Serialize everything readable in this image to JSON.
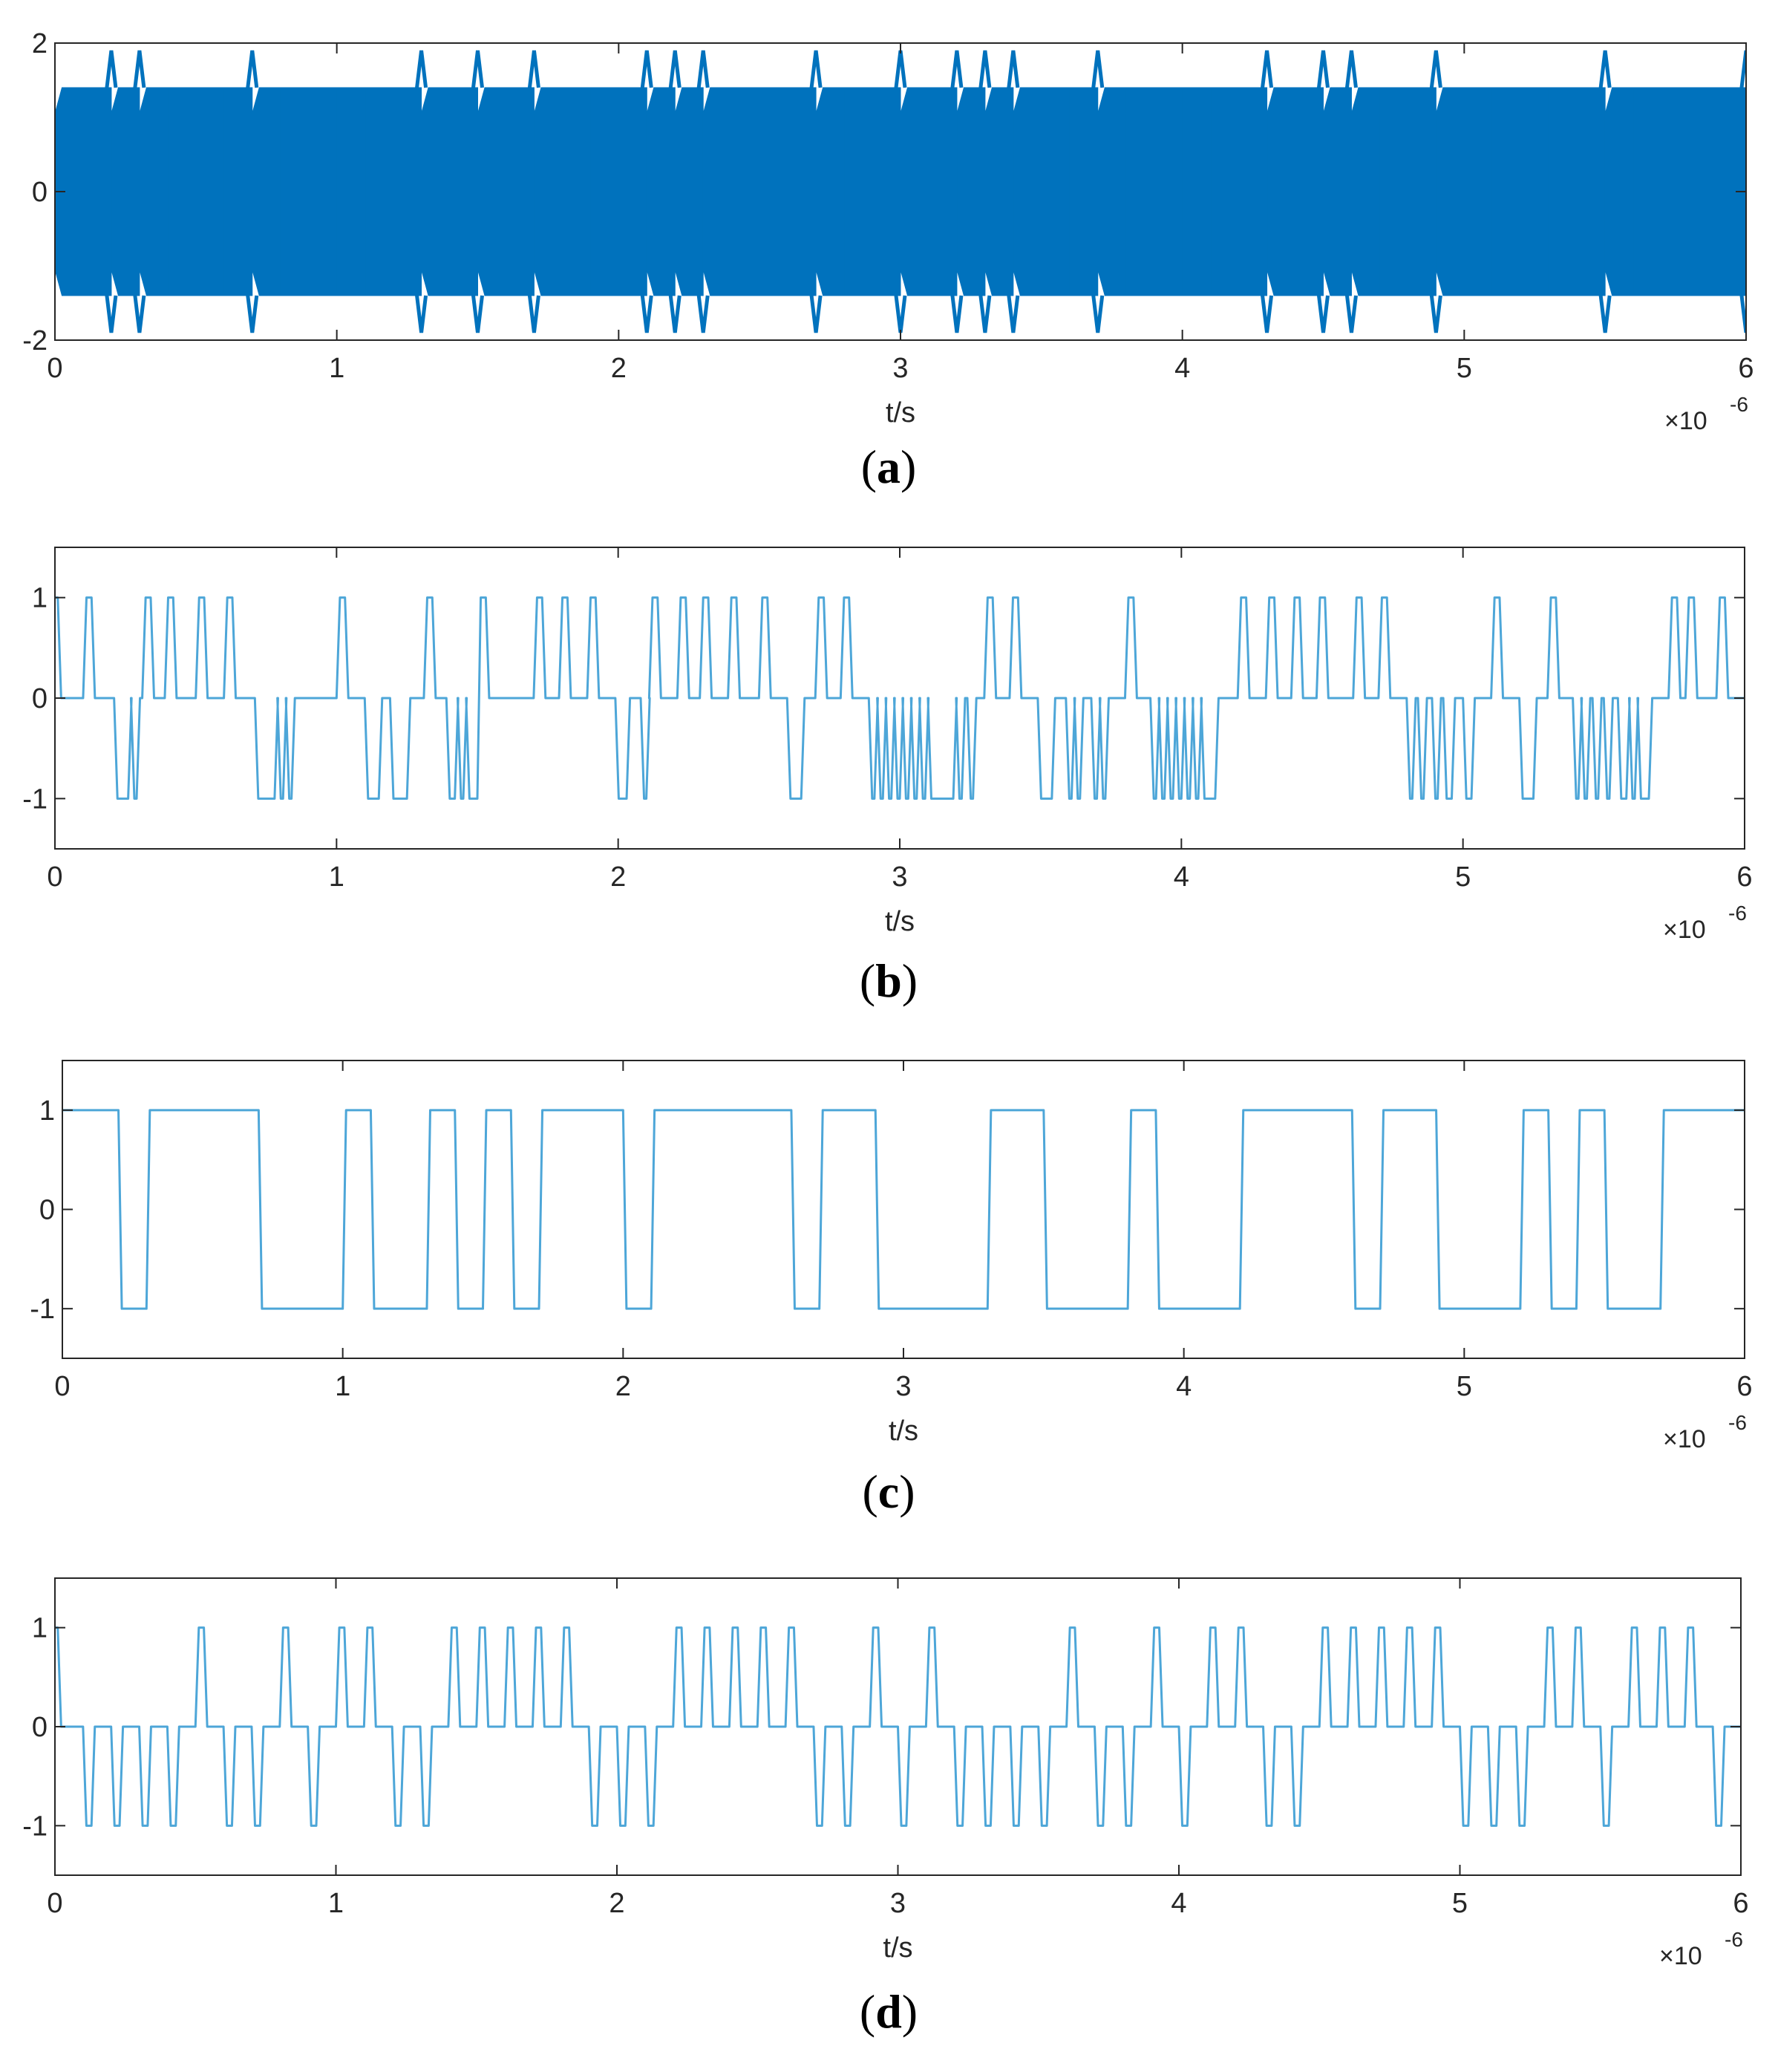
{
  "colors": {
    "trace": "#0072BD",
    "trace_light": "#4DA6D8",
    "axis": "#262626",
    "background": "#ffffff"
  },
  "chart_data": [
    {
      "panel": "a",
      "caption_letter": "a",
      "type": "line",
      "xlabel": "t/s",
      "x_multiplier": "×10",
      "x_exponent": "-6",
      "xlim": [
        0,
        6
      ],
      "ylim": [
        -2,
        2
      ],
      "xticks": [
        "0",
        "1",
        "2",
        "3",
        "4",
        "5",
        "6"
      ],
      "yticks": [
        "2",
        "0",
        "-2"
      ],
      "grid": false,
      "signal": "modulated",
      "carrier_envelope": 1.4,
      "symbol_period_us": 0.1,
      "symbol_signs": [
        1,
        1,
        -1,
        1,
        1,
        1,
        1,
        -1,
        -1,
        -1,
        -1,
        -1,
        -1,
        1,
        1,
        -1,
        -1,
        1,
        1,
        1,
        1,
        -1,
        1,
        -1,
        -1,
        -1,
        -1,
        1,
        1,
        1,
        -1,
        -1,
        1,
        -1,
        1,
        1,
        1,
        -1,
        -1,
        -1,
        -1,
        -1,
        -1,
        1,
        1,
        -1,
        1,
        1,
        1,
        -1,
        -1,
        -1,
        -1,
        -1,
        -1,
        1,
        1,
        1,
        1,
        1,
        -1,
        1,
        1,
        1,
        -1,
        -1,
        -1,
        1,
        1,
        1,
        -1,
        -1,
        -1,
        -1,
        1,
        1,
        -1,
        -1,
        -1,
        -1,
        -1,
        1,
        1,
        -1,
        -1,
        -1,
        -1,
        -1,
        1,
        1,
        -1,
        -1,
        1,
        1,
        1,
        1,
        1,
        1,
        1,
        1,
        -1,
        1,
        1,
        1,
        1,
        -1,
        -1,
        -1,
        1,
        1,
        1,
        -1,
        -1,
        1,
        1,
        1,
        -1,
        -1,
        -1,
        -1,
        1,
        1,
        1,
        1,
        1
      ]
    },
    {
      "panel": "b",
      "caption_letter": "b",
      "type": "line",
      "xlabel": "t/s",
      "x_multiplier": "×10",
      "x_exponent": "-6",
      "xlim": [
        0,
        6
      ],
      "ylim": [
        -1.5,
        1.5
      ],
      "xticks": [
        "0",
        "1",
        "2",
        "3",
        "4",
        "5",
        "6"
      ],
      "yticks": [
        "1",
        "0",
        "-1"
      ],
      "grid": false,
      "signal": "tri-state",
      "steps": [
        [
          0,
          1
        ],
        [
          0.01,
          0
        ],
        [
          0.1,
          1
        ],
        [
          0.13,
          0
        ],
        [
          0.21,
          -1
        ],
        [
          0.26,
          0
        ],
        [
          0.27,
          -1
        ],
        [
          0.29,
          0
        ],
        [
          0.31,
          1
        ],
        [
          0.34,
          0
        ],
        [
          0.39,
          1
        ],
        [
          0.42,
          0
        ],
        [
          0.5,
          1
        ],
        [
          0.53,
          0
        ],
        [
          0.6,
          1
        ],
        [
          0.63,
          0
        ],
        [
          0.71,
          -1
        ],
        [
          0.78,
          0
        ],
        [
          0.79,
          -1
        ],
        [
          0.81,
          0
        ],
        [
          0.82,
          -1
        ],
        [
          0.84,
          0
        ],
        [
          1.0,
          1
        ],
        [
          1.03,
          0
        ],
        [
          1.1,
          -1
        ],
        [
          1.15,
          0
        ],
        [
          1.19,
          -1
        ],
        [
          1.25,
          0
        ],
        [
          1.31,
          1
        ],
        [
          1.34,
          0
        ],
        [
          1.39,
          -1
        ],
        [
          1.42,
          0
        ],
        [
          1.43,
          -1
        ],
        [
          1.45,
          0
        ],
        [
          1.46,
          -1
        ],
        [
          1.5,
          1
        ],
        [
          1.53,
          0
        ],
        [
          1.7,
          1
        ],
        [
          1.73,
          0
        ],
        [
          1.79,
          1
        ],
        [
          1.82,
          0
        ],
        [
          1.89,
          1
        ],
        [
          1.92,
          0
        ],
        [
          1.99,
          -1
        ],
        [
          2.03,
          0
        ],
        [
          2.08,
          -1
        ],
        [
          2.1,
          0
        ],
        [
          2.11,
          1
        ],
        [
          2.14,
          0
        ],
        [
          2.21,
          1
        ],
        [
          2.24,
          0
        ],
        [
          2.29,
          1
        ],
        [
          2.32,
          0
        ],
        [
          2.39,
          1
        ],
        [
          2.42,
          0
        ],
        [
          2.5,
          1
        ],
        [
          2.53,
          0
        ],
        [
          2.6,
          -1
        ],
        [
          2.65,
          0
        ],
        [
          2.7,
          1
        ],
        [
          2.73,
          0
        ],
        [
          2.79,
          1
        ],
        [
          2.82,
          0
        ],
        [
          2.89,
          -1
        ],
        [
          2.91,
          0
        ],
        [
          2.92,
          -1
        ],
        [
          2.94,
          0
        ],
        [
          2.95,
          -1
        ],
        [
          2.97,
          0
        ],
        [
          2.98,
          -1
        ],
        [
          3.0,
          0
        ],
        [
          3.01,
          -1
        ],
        [
          3.03,
          0
        ],
        [
          3.04,
          -1
        ],
        [
          3.06,
          0
        ],
        [
          3.07,
          -1
        ],
        [
          3.09,
          0
        ],
        [
          3.1,
          -1
        ],
        [
          3.19,
          0
        ],
        [
          3.2,
          -1
        ],
        [
          3.22,
          0
        ],
        [
          3.24,
          -1
        ],
        [
          3.26,
          0
        ],
        [
          3.3,
          1
        ],
        [
          3.33,
          0
        ],
        [
          3.39,
          1
        ],
        [
          3.42,
          0
        ],
        [
          3.49,
          -1
        ],
        [
          3.54,
          0
        ],
        [
          3.59,
          -1
        ],
        [
          3.61,
          0
        ],
        [
          3.62,
          -1
        ],
        [
          3.64,
          0
        ],
        [
          3.68,
          -1
        ],
        [
          3.7,
          0
        ],
        [
          3.71,
          -1
        ],
        [
          3.73,
          0
        ],
        [
          3.8,
          1
        ],
        [
          3.83,
          0
        ],
        [
          3.89,
          -1
        ],
        [
          3.91,
          0
        ],
        [
          3.92,
          -1
        ],
        [
          3.94,
          0
        ],
        [
          3.95,
          -1
        ],
        [
          3.97,
          0
        ],
        [
          3.98,
          -1
        ],
        [
          4.0,
          0
        ],
        [
          4.01,
          -1
        ],
        [
          4.03,
          0
        ],
        [
          4.04,
          -1
        ],
        [
          4.06,
          0
        ],
        [
          4.07,
          -1
        ],
        [
          4.12,
          0
        ],
        [
          4.2,
          1
        ],
        [
          4.23,
          0
        ],
        [
          4.3,
          1
        ],
        [
          4.33,
          0
        ],
        [
          4.39,
          1
        ],
        [
          4.42,
          0
        ],
        [
          4.48,
          1
        ],
        [
          4.51,
          0
        ],
        [
          4.61,
          1
        ],
        [
          4.64,
          0
        ],
        [
          4.7,
          1
        ],
        [
          4.73,
          0
        ],
        [
          4.8,
          -1
        ],
        [
          4.82,
          0
        ],
        [
          4.84,
          -1
        ],
        [
          4.86,
          0
        ],
        [
          4.89,
          -1
        ],
        [
          4.91,
          0
        ],
        [
          4.93,
          -1
        ],
        [
          4.96,
          0
        ],
        [
          5.0,
          -1
        ],
        [
          5.03,
          0
        ],
        [
          5.1,
          1
        ],
        [
          5.13,
          0
        ],
        [
          5.2,
          -1
        ],
        [
          5.25,
          0
        ],
        [
          5.3,
          1
        ],
        [
          5.33,
          0
        ],
        [
          5.39,
          -1
        ],
        [
          5.41,
          0
        ],
        [
          5.42,
          -1
        ],
        [
          5.44,
          0
        ],
        [
          5.46,
          -1
        ],
        [
          5.48,
          0
        ],
        [
          5.5,
          -1
        ],
        [
          5.52,
          0
        ],
        [
          5.55,
          -1
        ],
        [
          5.58,
          0
        ],
        [
          5.59,
          -1
        ],
        [
          5.61,
          0
        ],
        [
          5.62,
          -1
        ],
        [
          5.66,
          0
        ],
        [
          5.73,
          1
        ],
        [
          5.76,
          0
        ],
        [
          5.79,
          1
        ],
        [
          5.82,
          0
        ],
        [
          5.9,
          1
        ],
        [
          5.93,
          0
        ],
        [
          6.0,
          0
        ]
      ]
    },
    {
      "panel": "c",
      "caption_letter": "c",
      "type": "line",
      "xlabel": "t/s",
      "x_multiplier": "×10",
      "x_exponent": "-6",
      "xlim": [
        0,
        6
      ],
      "ylim": [
        -1.5,
        1.5
      ],
      "xticks": [
        "0",
        "1",
        "2",
        "3",
        "4",
        "5",
        "6"
      ],
      "yticks": [
        "1",
        "0",
        "-1"
      ],
      "grid": false,
      "signal": "bipolar",
      "steps": [
        [
          0,
          1
        ],
        [
          0.2,
          -1
        ],
        [
          0.3,
          1
        ],
        [
          0.7,
          -1
        ],
        [
          1.0,
          1
        ],
        [
          1.1,
          -1
        ],
        [
          1.3,
          1
        ],
        [
          1.4,
          -1
        ],
        [
          1.5,
          1
        ],
        [
          1.6,
          -1
        ],
        [
          1.7,
          1
        ],
        [
          2.0,
          -1
        ],
        [
          2.1,
          1
        ],
        [
          2.6,
          -1
        ],
        [
          2.7,
          1
        ],
        [
          2.9,
          -1
        ],
        [
          3.3,
          1
        ],
        [
          3.5,
          -1
        ],
        [
          3.8,
          1
        ],
        [
          3.9,
          -1
        ],
        [
          4.2,
          1
        ],
        [
          4.6,
          -1
        ],
        [
          4.7,
          1
        ],
        [
          4.9,
          -1
        ],
        [
          5.2,
          1
        ],
        [
          5.3,
          -1
        ],
        [
          5.4,
          1
        ],
        [
          5.5,
          -1
        ],
        [
          5.7,
          1
        ],
        [
          6.0,
          1
        ]
      ]
    },
    {
      "panel": "d",
      "caption_letter": "d",
      "type": "line",
      "xlabel": "t/s",
      "x_multiplier": "×10",
      "x_exponent": "-6",
      "xlim": [
        0,
        6
      ],
      "ylim": [
        -1.5,
        1.5
      ],
      "xticks": [
        "0",
        "1",
        "2",
        "3",
        "4",
        "5",
        "6"
      ],
      "yticks": [
        "1",
        "0",
        "-1"
      ],
      "grid": false,
      "signal": "tri-state",
      "steps": [
        [
          0,
          1
        ],
        [
          0.01,
          0
        ],
        [
          0.1,
          -1
        ],
        [
          0.13,
          0
        ],
        [
          0.2,
          -1
        ],
        [
          0.23,
          0
        ],
        [
          0.3,
          -1
        ],
        [
          0.33,
          0
        ],
        [
          0.4,
          -1
        ],
        [
          0.43,
          0
        ],
        [
          0.5,
          1
        ],
        [
          0.53,
          0
        ],
        [
          0.6,
          -1
        ],
        [
          0.63,
          0
        ],
        [
          0.7,
          -1
        ],
        [
          0.73,
          0
        ],
        [
          0.8,
          1
        ],
        [
          0.83,
          0
        ],
        [
          0.9,
          -1
        ],
        [
          0.93,
          0
        ],
        [
          1.0,
          1
        ],
        [
          1.03,
          0
        ],
        [
          1.1,
          1
        ],
        [
          1.13,
          0
        ],
        [
          1.2,
          -1
        ],
        [
          1.23,
          0
        ],
        [
          1.3,
          -1
        ],
        [
          1.33,
          0
        ],
        [
          1.4,
          1
        ],
        [
          1.43,
          0
        ],
        [
          1.5,
          1
        ],
        [
          1.53,
          0
        ],
        [
          1.6,
          1
        ],
        [
          1.63,
          0
        ],
        [
          1.7,
          1
        ],
        [
          1.73,
          0
        ],
        [
          1.8,
          1
        ],
        [
          1.83,
          0
        ],
        [
          1.9,
          -1
        ],
        [
          1.93,
          0
        ],
        [
          2.0,
          -1
        ],
        [
          2.03,
          0
        ],
        [
          2.1,
          -1
        ],
        [
          2.13,
          0
        ],
        [
          2.2,
          1
        ],
        [
          2.23,
          0
        ],
        [
          2.3,
          1
        ],
        [
          2.33,
          0
        ],
        [
          2.4,
          1
        ],
        [
          2.43,
          0
        ],
        [
          2.5,
          1
        ],
        [
          2.53,
          0
        ],
        [
          2.6,
          1
        ],
        [
          2.63,
          0
        ],
        [
          2.7,
          -1
        ],
        [
          2.73,
          0
        ],
        [
          2.8,
          -1
        ],
        [
          2.83,
          0
        ],
        [
          2.9,
          1
        ],
        [
          2.93,
          0
        ],
        [
          3.0,
          -1
        ],
        [
          3.03,
          0
        ],
        [
          3.1,
          1
        ],
        [
          3.13,
          0
        ],
        [
          3.2,
          -1
        ],
        [
          3.23,
          0
        ],
        [
          3.3,
          -1
        ],
        [
          3.33,
          0
        ],
        [
          3.4,
          -1
        ],
        [
          3.43,
          0
        ],
        [
          3.5,
          -1
        ],
        [
          3.53,
          0
        ],
        [
          3.6,
          1
        ],
        [
          3.63,
          0
        ],
        [
          3.7,
          -1
        ],
        [
          3.73,
          0
        ],
        [
          3.8,
          -1
        ],
        [
          3.83,
          0
        ],
        [
          3.9,
          1
        ],
        [
          3.93,
          0
        ],
        [
          4.0,
          -1
        ],
        [
          4.03,
          0
        ],
        [
          4.1,
          1
        ],
        [
          4.13,
          0
        ],
        [
          4.2,
          1
        ],
        [
          4.23,
          0
        ],
        [
          4.3,
          -1
        ],
        [
          4.33,
          0
        ],
        [
          4.4,
          -1
        ],
        [
          4.43,
          0
        ],
        [
          4.5,
          1
        ],
        [
          4.53,
          0
        ],
        [
          4.6,
          1
        ],
        [
          4.63,
          0
        ],
        [
          4.7,
          1
        ],
        [
          4.73,
          0
        ],
        [
          4.8,
          1
        ],
        [
          4.83,
          0
        ],
        [
          4.9,
          1
        ],
        [
          4.93,
          0
        ],
        [
          5.0,
          -1
        ],
        [
          5.03,
          0
        ],
        [
          5.1,
          -1
        ],
        [
          5.13,
          0
        ],
        [
          5.2,
          -1
        ],
        [
          5.23,
          0
        ],
        [
          5.3,
          1
        ],
        [
          5.33,
          0
        ],
        [
          5.4,
          1
        ],
        [
          5.43,
          0
        ],
        [
          5.5,
          -1
        ],
        [
          5.53,
          0
        ],
        [
          5.6,
          1
        ],
        [
          5.63,
          0
        ],
        [
          5.7,
          1
        ],
        [
          5.73,
          0
        ],
        [
          5.8,
          1
        ],
        [
          5.83,
          0
        ],
        [
          5.9,
          -1
        ],
        [
          5.93,
          0
        ],
        [
          6.0,
          0
        ]
      ]
    }
  ]
}
